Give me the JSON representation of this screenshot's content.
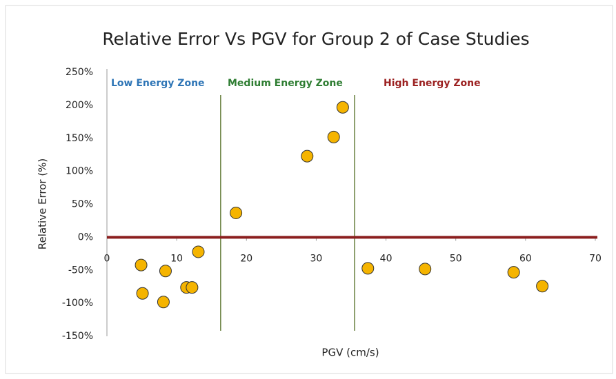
{
  "chart_data": {
    "type": "scatter",
    "title": "Relative Error Vs PGV for Group 2 of Case Studies",
    "x_label": "PGV (cm/s)",
    "y_label": "Relative Error (%)",
    "x": [
      4.9,
      5.1,
      8.4,
      8.1,
      11.4,
      12.2,
      13.1,
      18.5,
      28.7,
      32.5,
      33.8,
      37.4,
      45.6,
      58.3,
      62.4
    ],
    "values": [
      -42,
      -85,
      -51,
      -98,
      -76,
      -76,
      -22,
      37,
      123,
      152,
      197,
      -47,
      -48,
      -53,
      -74
    ],
    "color": "#f5b400",
    "xlim": [
      0,
      70
    ],
    "xticks": [
      0,
      10,
      20,
      30,
      40,
      50,
      60,
      70
    ],
    "ylim": [
      -150,
      250
    ],
    "yticks": [
      {
        "value": -150,
        "label": "-150%"
      },
      {
        "value": -100,
        "label": "-100%"
      },
      {
        "value": -50,
        "label": "-50%"
      },
      {
        "value": 0,
        "label": "0%"
      },
      {
        "value": 50,
        "label": "50%"
      },
      {
        "value": 100,
        "label": "100%"
      },
      {
        "value": 150,
        "label": "150%"
      },
      {
        "value": 200,
        "label": "200%"
      },
      {
        "value": 250,
        "label": "250%"
      }
    ],
    "reference_line": {
      "value": 0,
      "color": "#8b1e1e"
    },
    "zone_boundaries": [
      16.3,
      35.5
    ],
    "zone_boundary_color": "#4f6b1f",
    "annotations": [
      {
        "text": "Low Energy Zone",
        "color": "#2e75b6"
      },
      {
        "text": "Medium  Energy Zone",
        "color": "#2e7d32"
      },
      {
        "text": "High Energy Zone",
        "color": "#9b2020"
      }
    ]
  }
}
